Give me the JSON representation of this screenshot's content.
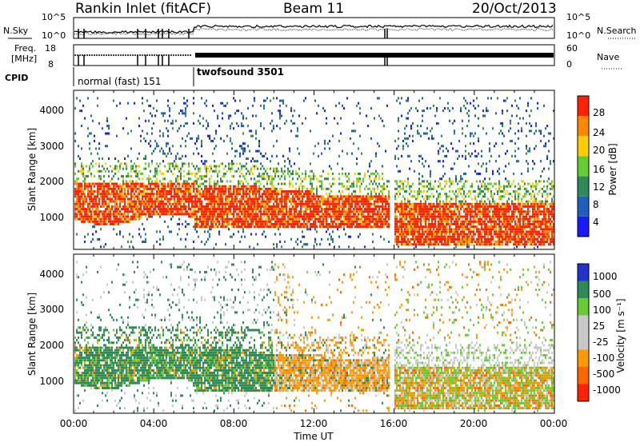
{
  "header": {
    "title": "Rankin Inlet (fitACF)",
    "beam": "Beam 11",
    "date": "20/Oct/2013"
  },
  "status_panel": {
    "nsky_label": "N.Sky",
    "nsky_ticks": [
      "10^5",
      "10^0"
    ],
    "nsearch_label": "N.Search",
    "nsearch_ticks": [
      "10^5",
      "10^0"
    ],
    "freq_label_1": "Freq.",
    "freq_label_2": "[MHz]",
    "freq_ticks": [
      "18",
      "8"
    ],
    "nave_label": "Nave",
    "nave_ticks": [
      "60",
      "0"
    ],
    "cpid_label": "CPID",
    "modes": [
      {
        "label": "normal (fast) 151",
        "start_hour": 0.0,
        "end_hour": 6.0
      },
      {
        "label": "twofsound 3501",
        "start_hour": 6.0,
        "end_hour": 24.0
      }
    ]
  },
  "time_axis": {
    "label": "Time UT",
    "ticks": [
      "00:00",
      "04:00",
      "08:00",
      "12:00",
      "16:00",
      "20:00",
      "00:00"
    ]
  },
  "chart_data": [
    {
      "type": "heatmap",
      "title": "Power",
      "xlabel": "Time UT",
      "ylabel": "Slant Range [km]",
      "xlim_hours": [
        0,
        24
      ],
      "ylim": [
        180,
        4600
      ],
      "yticks": [
        "1000",
        "2000",
        "3000",
        "4000"
      ],
      "colorbar_label": "Power [dB]",
      "colorbar_ticks": [
        "4",
        "8",
        "12",
        "16",
        "20",
        "24",
        "28"
      ],
      "colorbar_colors": [
        "#1a1aff",
        "#1f5fbf",
        "#2e8b57",
        "#66cc33",
        "#ffcc00",
        "#ff8800",
        "#ff2200"
      ],
      "scatter_regions": [
        {
          "x": [
            0.0,
            6.0
          ],
          "y": [
            900,
            2000
          ],
          "level": "high"
        },
        {
          "x": [
            6.0,
            12.0
          ],
          "y": [
            800,
            2100
          ],
          "level": "high"
        },
        {
          "x": [
            12.0,
            15.8
          ],
          "y": [
            800,
            1800
          ],
          "level": "medium"
        },
        {
          "x": [
            16.0,
            24.0
          ],
          "y": [
            300,
            1500
          ],
          "level": "high"
        },
        {
          "x": [
            0.0,
            24.0
          ],
          "y": [
            2000,
            4400
          ],
          "level": "sparse"
        }
      ]
    },
    {
      "type": "heatmap",
      "title": "Velocity",
      "xlabel": "Time UT",
      "ylabel": "Slant Range [km]",
      "xlim_hours": [
        0,
        24
      ],
      "ylim": [
        180,
        4600
      ],
      "yticks": [
        "1000",
        "2000",
        "3000",
        "4000"
      ],
      "colorbar_label": "Velocity [m s⁻¹]",
      "colorbar_ticks": [
        "1000",
        "500",
        "100",
        "25",
        "-25",
        "-100",
        "-500",
        "-1000"
      ],
      "colorbar_colors": [
        "#2233cc",
        "#2e8b57",
        "#66cc33",
        "#c8c8c8",
        "#c8c8c8",
        "#ff9900",
        "#ff6600",
        "#ff2200"
      ],
      "scatter_regions": [
        {
          "x": [
            0.0,
            10.0
          ],
          "y": [
            800,
            2000
          ],
          "level": "toward (green)"
        },
        {
          "x": [
            10.0,
            15.8
          ],
          "y": [
            800,
            1800
          ],
          "level": "away (orange)"
        },
        {
          "x": [
            16.0,
            24.0
          ],
          "y": [
            400,
            1400
          ],
          "level": "mixed green/orange"
        },
        {
          "x": [
            12.0,
            24.0
          ],
          "y": [
            1500,
            2200
          ],
          "level": "low (grey)"
        }
      ]
    }
  ]
}
